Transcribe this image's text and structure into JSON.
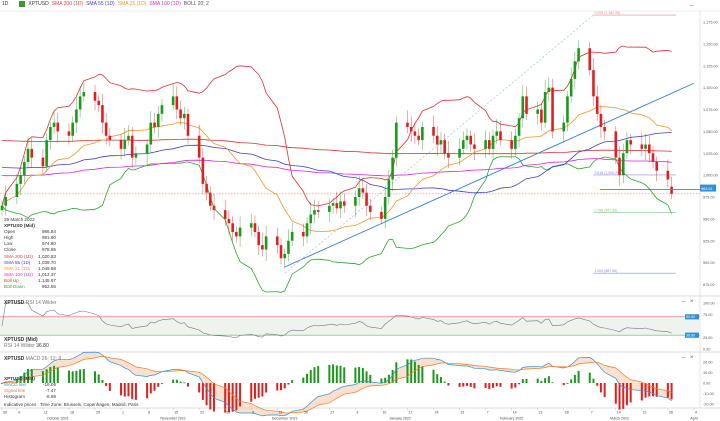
{
  "header": {
    "interval": "1D",
    "symbol": "XPTUSD",
    "indicators": [
      {
        "label": "SMA 200 (1D)",
        "color": "#e03c3c"
      },
      {
        "label": "SMA 55 (1D)",
        "color": "#3a3ad6"
      },
      {
        "label": "SMA 21 (1D)",
        "color": "#f0942a"
      },
      {
        "label": "SMA 100 (1D)",
        "color": "#d82ad8"
      },
      {
        "label": "BOLL 20; 2",
        "color": "#555555"
      }
    ]
  },
  "info": {
    "date": "29 March 2022",
    "title": "XPTUSD (Mid)",
    "rows": [
      {
        "label": "Open",
        "value": "986.84",
        "color": "#333333"
      },
      {
        "label": "High",
        "value": "991.90",
        "color": "#333333"
      },
      {
        "label": "Low",
        "value": "974.80",
        "color": "#333333"
      },
      {
        "label": "Close",
        "value": "978.55",
        "color": "#333333"
      },
      {
        "label": "SMA 200 (1D)",
        "value": "1,020.83",
        "color": "#e03c3c"
      },
      {
        "label": "SMA 55 (1D)",
        "value": "1,039.70",
        "color": "#3a3ad6"
      },
      {
        "label": "SMA 21 (1D)",
        "value": "1,049.58",
        "color": "#f0942a"
      },
      {
        "label": "SMA 100 (1D)",
        "value": "1,012.37",
        "color": "#d82ad8"
      },
      {
        "label": "Boll Up",
        "value": "1,145.97",
        "color": "#e03c3c"
      },
      {
        "label": "Boll Down",
        "value": "952.55",
        "color": "#2aa52a"
      }
    ]
  },
  "rsi_panel": {
    "title_symbol": "XPTUSD",
    "title": "RSI 14 Wilder",
    "info_title": "XPTUSD (Mid)",
    "info_label": "RSI 14 Wilder",
    "info_value": "36.80"
  },
  "macd_panel": {
    "title_symbol": "XPTUSD",
    "title": "MACD 26; 12; 9",
    "info_title": "XPTUSD (Mid)",
    "rows": [
      {
        "label": "MACD line",
        "value": "-16.06",
        "color": "#2f8fd8"
      },
      {
        "label": "Signal line",
        "value": "-7.47",
        "color": "#f07a2a"
      },
      {
        "label": "Histogram",
        "value": "-8.59",
        "color": "#333333"
      }
    ]
  },
  "footer": {
    "note": "Indicative prices",
    "timezone": "Time Zone: Brussels, Copenhagen, Madrid, Paris"
  },
  "current_price_label": "983.51",
  "rsi_marker_labels": [
    "50.00",
    "36.80"
  ],
  "chart_data": {
    "type": "candlestick",
    "symbol": "XPTUSD",
    "start_date": "2021-09-30",
    "closes": [
      965,
      975,
      990,
      1000,
      1015,
      1030,
      1020,
      1010,
      1040,
      1055,
      1060,
      1050,
      1045,
      1060,
      1075,
      1090,
      1095,
      1085,
      1080,
      1060,
      1045,
      1040,
      1030,
      1040,
      1045,
      1020,
      1025,
      1035,
      1060,
      1055,
      1070,
      1080,
      1090,
      1075,
      1065,
      1070,
      1045,
      1020,
      990,
      980,
      965,
      960,
      950,
      945,
      935,
      930,
      940,
      945,
      935,
      920,
      915,
      930,
      920,
      905,
      910,
      925,
      935,
      930,
      945,
      955,
      960,
      958,
      965,
      968,
      962,
      970,
      965,
      975,
      985,
      980,
      965,
      958,
      950,
      975,
      995,
      1020,
      1060,
      1055,
      1050,
      1045,
      1040,
      1055,
      1045,
      1035,
      1040,
      1025,
      1020,
      1030,
      1040,
      1045,
      1035,
      1030,
      1040,
      1030,
      1045,
      1050,
      1040,
      1030,
      1045,
      1065,
      1090,
      1070,
      1075,
      1060,
      1095,
      1100,
      1050,
      1060,
      1090,
      1110,
      1130,
      1145,
      1120,
      1090,
      1070,
      1055,
      1050,
      1020,
      1000,
      1025,
      1040,
      1035,
      1030,
      1035,
      1025,
      1015,
      1005,
      995,
      978.55
    ],
    "last_open": 986.84,
    "price_axis": {
      "min": 875,
      "max": 1175,
      "step": 25,
      "labels": [
        "1,175.00",
        "1,150.00",
        "1,125.00",
        "1,100.00",
        "1,075.00",
        "1,050.00",
        "1,025.00",
        "1,000.00",
        "975.00",
        "950.00",
        "925.00",
        "900.00",
        "875.00"
      ]
    },
    "rsi_axis": {
      "labels": [
        "100.00",
        "75.00",
        "25.00",
        "0.00"
      ],
      "values": [
        100,
        75,
        25,
        0
      ],
      "overbought": 70,
      "oversold": 30
    },
    "macd_axis": {
      "labels": [
        "20.00",
        "10.00",
        "0.00",
        "-10.00",
        "-20.00"
      ],
      "values": [
        20,
        10,
        0,
        -10,
        -20
      ]
    },
    "fibonacci": [
      {
        "label": "0.000 (1,182.95)",
        "value": 1182.95
      },
      {
        "label": "0.618 (1,000.26)",
        "value": 1000.26
      },
      {
        "label": "0.786 (957.35)",
        "value": 957.35
      },
      {
        "label": "1.000 (887.95)",
        "value": 887.95
      }
    ],
    "trendline": {
      "from": {
        "date": "2021-12-15",
        "price": 895
      },
      "to": {
        "date": "2022-04-04",
        "price": 1105
      }
    },
    "x_ticks": [
      {
        "date": "2021-09-30",
        "label": "30"
      },
      {
        "date": "2021-10-04",
        "label": "4"
      },
      {
        "date": "2021-10-11",
        "label": "11"
      },
      {
        "date": "2021-10-18",
        "label": "18"
      },
      {
        "date": "2021-10-25",
        "label": "25"
      },
      {
        "date": "2021-11-01",
        "label": "1"
      },
      {
        "date": "2021-11-08",
        "label": "8"
      },
      {
        "date": "2021-11-15",
        "label": "15"
      },
      {
        "date": "2021-11-22",
        "label": "22"
      },
      {
        "date": "2021-11-29",
        "label": "29"
      },
      {
        "date": "2021-12-06",
        "label": "6"
      },
      {
        "date": "2021-12-13",
        "label": "13"
      },
      {
        "date": "2021-12-20",
        "label": "20"
      },
      {
        "date": "2021-12-27",
        "label": "27"
      },
      {
        "date": "2022-01-03",
        "label": "3"
      },
      {
        "date": "2022-01-10",
        "label": "10"
      },
      {
        "date": "2022-01-17",
        "label": "17"
      },
      {
        "date": "2022-01-24",
        "label": "24"
      },
      {
        "date": "2022-01-31",
        "label": "31"
      },
      {
        "date": "2022-02-07",
        "label": "7"
      },
      {
        "date": "2022-02-14",
        "label": "14"
      },
      {
        "date": "2022-02-21",
        "label": "21"
      },
      {
        "date": "2022-02-28",
        "label": "28"
      },
      {
        "date": "2022-03-07",
        "label": "7"
      },
      {
        "date": "2022-03-14",
        "label": "14"
      },
      {
        "date": "2022-03-21",
        "label": "21"
      },
      {
        "date": "2022-03-28",
        "label": "28"
      },
      {
        "date": "2022-04-04",
        "label": "4"
      }
    ],
    "months": [
      {
        "date": "2021-10-15",
        "label": "October 2021"
      },
      {
        "date": "2021-11-15",
        "label": "November 2021"
      },
      {
        "date": "2021-12-15",
        "label": "December 2021"
      },
      {
        "date": "2022-01-15",
        "label": "January 2022"
      },
      {
        "date": "2022-02-14",
        "label": "February 2022"
      },
      {
        "date": "2022-03-15",
        "label": "March 2022"
      },
      {
        "date": "2022-04-04",
        "label": "April"
      }
    ]
  }
}
